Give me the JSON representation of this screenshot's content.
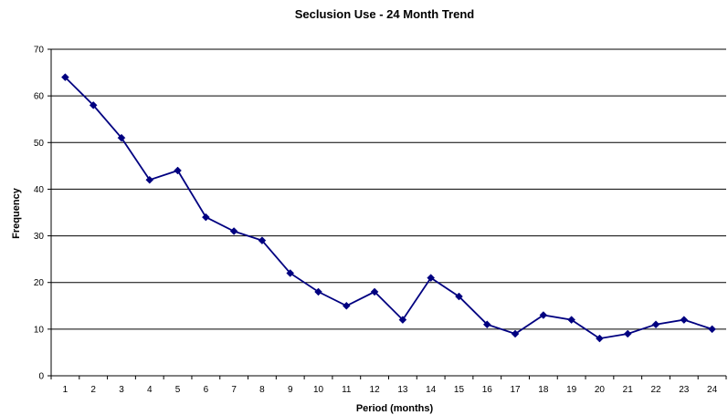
{
  "chart_data": {
    "type": "line",
    "title": "Seclusion Use - 24 Month Trend",
    "xlabel": "Period (months)",
    "ylabel": "Frequency",
    "categories": [
      "1",
      "2",
      "3",
      "4",
      "5",
      "6",
      "7",
      "8",
      "9",
      "10",
      "11",
      "12",
      "13",
      "14",
      "15",
      "16",
      "17",
      "18",
      "19",
      "20",
      "21",
      "22",
      "23",
      "24"
    ],
    "yticks": [
      "0",
      "10",
      "20",
      "30",
      "40",
      "50",
      "60",
      "70"
    ],
    "ylim": [
      0,
      70
    ],
    "grid": true,
    "legend": "none",
    "series": [
      {
        "values": [
          64,
          58,
          51,
          42,
          44,
          34,
          31,
          29,
          22,
          18,
          15,
          18,
          12,
          21,
          17,
          11,
          9,
          13,
          12,
          8,
          9,
          11,
          12,
          10
        ],
        "color": "#000080",
        "marker": "diamond"
      }
    ]
  }
}
